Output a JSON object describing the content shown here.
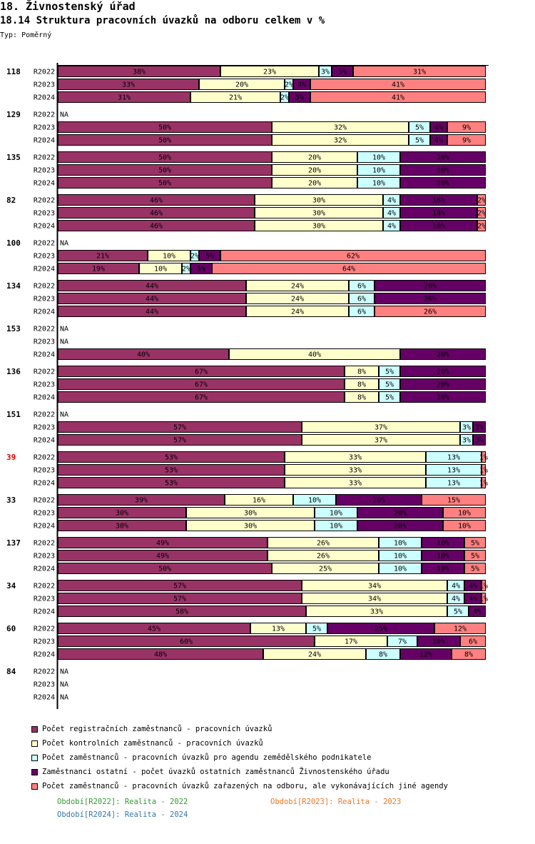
{
  "header": {
    "title": "18. Živnostenský úřad",
    "subtitle": "18.14 Struktura pracovních úvazků na odboru celkem v %",
    "type_label": "Typ: Poměrný"
  },
  "legend": [
    {
      "label": "Počet registračních zaměstnanců - pracovních úvazků",
      "color": "#993366"
    },
    {
      "label": "Počet kontrolních zaměstnanců - pracovních úvazků",
      "color": "#FFFFCC"
    },
    {
      "label": "Počet zaměstnanců - pracovních úvazků pro agendu zemědělského podnikatele",
      "color": "#CCFFFF"
    },
    {
      "label": "Zaměstnanci ostatní - počet úvazků ostatních zaměstnanců Živnostenského úřadu",
      "color": "#660066"
    },
    {
      "label": "Počet zaměstnanců - pracovních úvazků zařazených na odboru, ale vykonávajících jiné agendy",
      "color": "#FF8080"
    }
  ],
  "periods": [
    {
      "label": "Období[R2022]: Realita - 2022",
      "color": "#339933"
    },
    {
      "label": "Období[R2023]: Realita - 2023",
      "color": "#EE7722"
    },
    {
      "label": "Období[R2024]: Realita - 2024",
      "color": "#3377AA"
    }
  ],
  "chart_data": {
    "type": "bar",
    "orientation": "horizontal-stacked-100",
    "title": "18.14 Struktura pracovních úvazků na odboru celkem v %",
    "na_label": "NA",
    "series_names": [
      "Počet registračních zaměstnanců - pracovních úvazků",
      "Počet kontrolních zaměstnanců - pracovních úvazků",
      "Počet zaměstnanců - pracovních úvazků pro agendu zemědělského podnikatele",
      "Zaměstnanci ostatní - počet úvazků ostatních zaměstnanců Živnostenského úřadu",
      "Počet zaměstnanců - pracovních úvazků zařazených na odboru, ale vykonávajících jiné agendy"
    ],
    "series_colors": [
      "#993366",
      "#FFFFCC",
      "#CCFFFF",
      "#660066",
      "#FF8080"
    ],
    "label_colors": [
      "#000000",
      "#000000",
      "#000000",
      "#000000",
      "#000000"
    ],
    "unit": "%",
    "groups": [
      {
        "id": "118",
        "highlight": false,
        "rows": [
          {
            "period": "R2022",
            "values": [
              38,
              23,
              3,
              5,
              31
            ]
          },
          {
            "period": "R2023",
            "values": [
              33,
              20,
              2,
              4,
              41
            ]
          },
          {
            "period": "R2024",
            "values": [
              31,
              21,
              2,
              5,
              41
            ]
          }
        ]
      },
      {
        "id": "129",
        "highlight": false,
        "rows": [
          {
            "period": "R2022",
            "values": null
          },
          {
            "period": "R2023",
            "values": [
              50,
              32,
              5,
              4,
              9
            ]
          },
          {
            "period": "R2024",
            "values": [
              50,
              32,
              5,
              4,
              9
            ]
          }
        ]
      },
      {
        "id": "135",
        "highlight": false,
        "rows": [
          {
            "period": "R2022",
            "values": [
              50,
              20,
              10,
              20,
              0
            ]
          },
          {
            "period": "R2023",
            "values": [
              50,
              20,
              10,
              20,
              0
            ]
          },
          {
            "period": "R2024",
            "values": [
              50,
              20,
              10,
              20,
              0
            ]
          }
        ]
      },
      {
        "id": "82",
        "highlight": false,
        "rows": [
          {
            "period": "R2022",
            "values": [
              46,
              30,
              4,
              18,
              2
            ]
          },
          {
            "period": "R2023",
            "values": [
              46,
              30,
              4,
              18,
              2
            ]
          },
          {
            "period": "R2024",
            "values": [
              46,
              30,
              4,
              18,
              2
            ]
          }
        ]
      },
      {
        "id": "100",
        "highlight": false,
        "rows": [
          {
            "period": "R2022",
            "values": null
          },
          {
            "period": "R2023",
            "values": [
              21,
              10,
              2,
              5,
              62
            ]
          },
          {
            "period": "R2024",
            "values": [
              19,
              10,
              2,
              5,
              64
            ]
          }
        ]
      },
      {
        "id": "134",
        "highlight": false,
        "rows": [
          {
            "period": "R2022",
            "values": [
              44,
              24,
              6,
              26,
              0
            ]
          },
          {
            "period": "R2023",
            "values": [
              44,
              24,
              6,
              26,
              0
            ]
          },
          {
            "period": "R2024",
            "values": [
              44,
              24,
              6,
              0,
              26
            ]
          }
        ]
      },
      {
        "id": "153",
        "highlight": false,
        "rows": [
          {
            "period": "R2022",
            "values": null
          },
          {
            "period": "R2023",
            "values": null
          },
          {
            "period": "R2024",
            "values": [
              40,
              40,
              0,
              20,
              0
            ]
          }
        ]
      },
      {
        "id": "136",
        "highlight": false,
        "rows": [
          {
            "period": "R2022",
            "values": [
              67,
              8,
              5,
              20,
              0
            ]
          },
          {
            "period": "R2023",
            "values": [
              67,
              8,
              5,
              20,
              0
            ]
          },
          {
            "period": "R2024",
            "values": [
              67,
              8,
              5,
              20,
              0
            ]
          }
        ]
      },
      {
        "id": "151",
        "highlight": false,
        "rows": [
          {
            "period": "R2022",
            "values": null
          },
          {
            "period": "R2023",
            "values": [
              57,
              37,
              3,
              3,
              0
            ]
          },
          {
            "period": "R2024",
            "values": [
              57,
              37,
              3,
              3,
              0
            ]
          }
        ]
      },
      {
        "id": "39",
        "highlight": true,
        "rows": [
          {
            "period": "R2022",
            "values": [
              53,
              33,
              13,
              0,
              1
            ]
          },
          {
            "period": "R2023",
            "values": [
              53,
              33,
              13,
              0,
              1
            ]
          },
          {
            "period": "R2024",
            "values": [
              53,
              33,
              13,
              0,
              1
            ]
          }
        ]
      },
      {
        "id": "33",
        "highlight": false,
        "rows": [
          {
            "period": "R2022",
            "values": [
              39,
              16,
              10,
              20,
              15
            ]
          },
          {
            "period": "R2023",
            "values": [
              30,
              30,
              10,
              20,
              10
            ]
          },
          {
            "period": "R2024",
            "values": [
              30,
              30,
              10,
              20,
              10
            ]
          }
        ]
      },
      {
        "id": "137",
        "highlight": false,
        "rows": [
          {
            "period": "R2022",
            "values": [
              49,
              26,
              10,
              10,
              5
            ]
          },
          {
            "period": "R2023",
            "values": [
              49,
              26,
              10,
              10,
              5
            ]
          },
          {
            "period": "R2024",
            "values": [
              50,
              25,
              10,
              10,
              5
            ]
          }
        ]
      },
      {
        "id": "34",
        "highlight": false,
        "rows": [
          {
            "period": "R2022",
            "values": [
              57,
              34,
              4,
              4,
              1
            ]
          },
          {
            "period": "R2023",
            "values": [
              57,
              34,
              4,
              4,
              1
            ]
          },
          {
            "period": "R2024",
            "values": [
              58,
              33,
              5,
              4,
              0
            ]
          }
        ]
      },
      {
        "id": "60",
        "highlight": false,
        "rows": [
          {
            "period": "R2022",
            "values": [
              45,
              13,
              5,
              25,
              12
            ]
          },
          {
            "period": "R2023",
            "values": [
              60,
              17,
              7,
              10,
              6
            ]
          },
          {
            "period": "R2024",
            "values": [
              48,
              24,
              8,
              12,
              8
            ]
          }
        ]
      },
      {
        "id": "84",
        "highlight": false,
        "rows": [
          {
            "period": "R2022",
            "values": null
          },
          {
            "period": "R2023",
            "values": null
          },
          {
            "period": "R2024",
            "values": null
          }
        ]
      }
    ],
    "xlim": [
      0,
      100
    ],
    "grid": false,
    "legend_position": "bottom"
  }
}
